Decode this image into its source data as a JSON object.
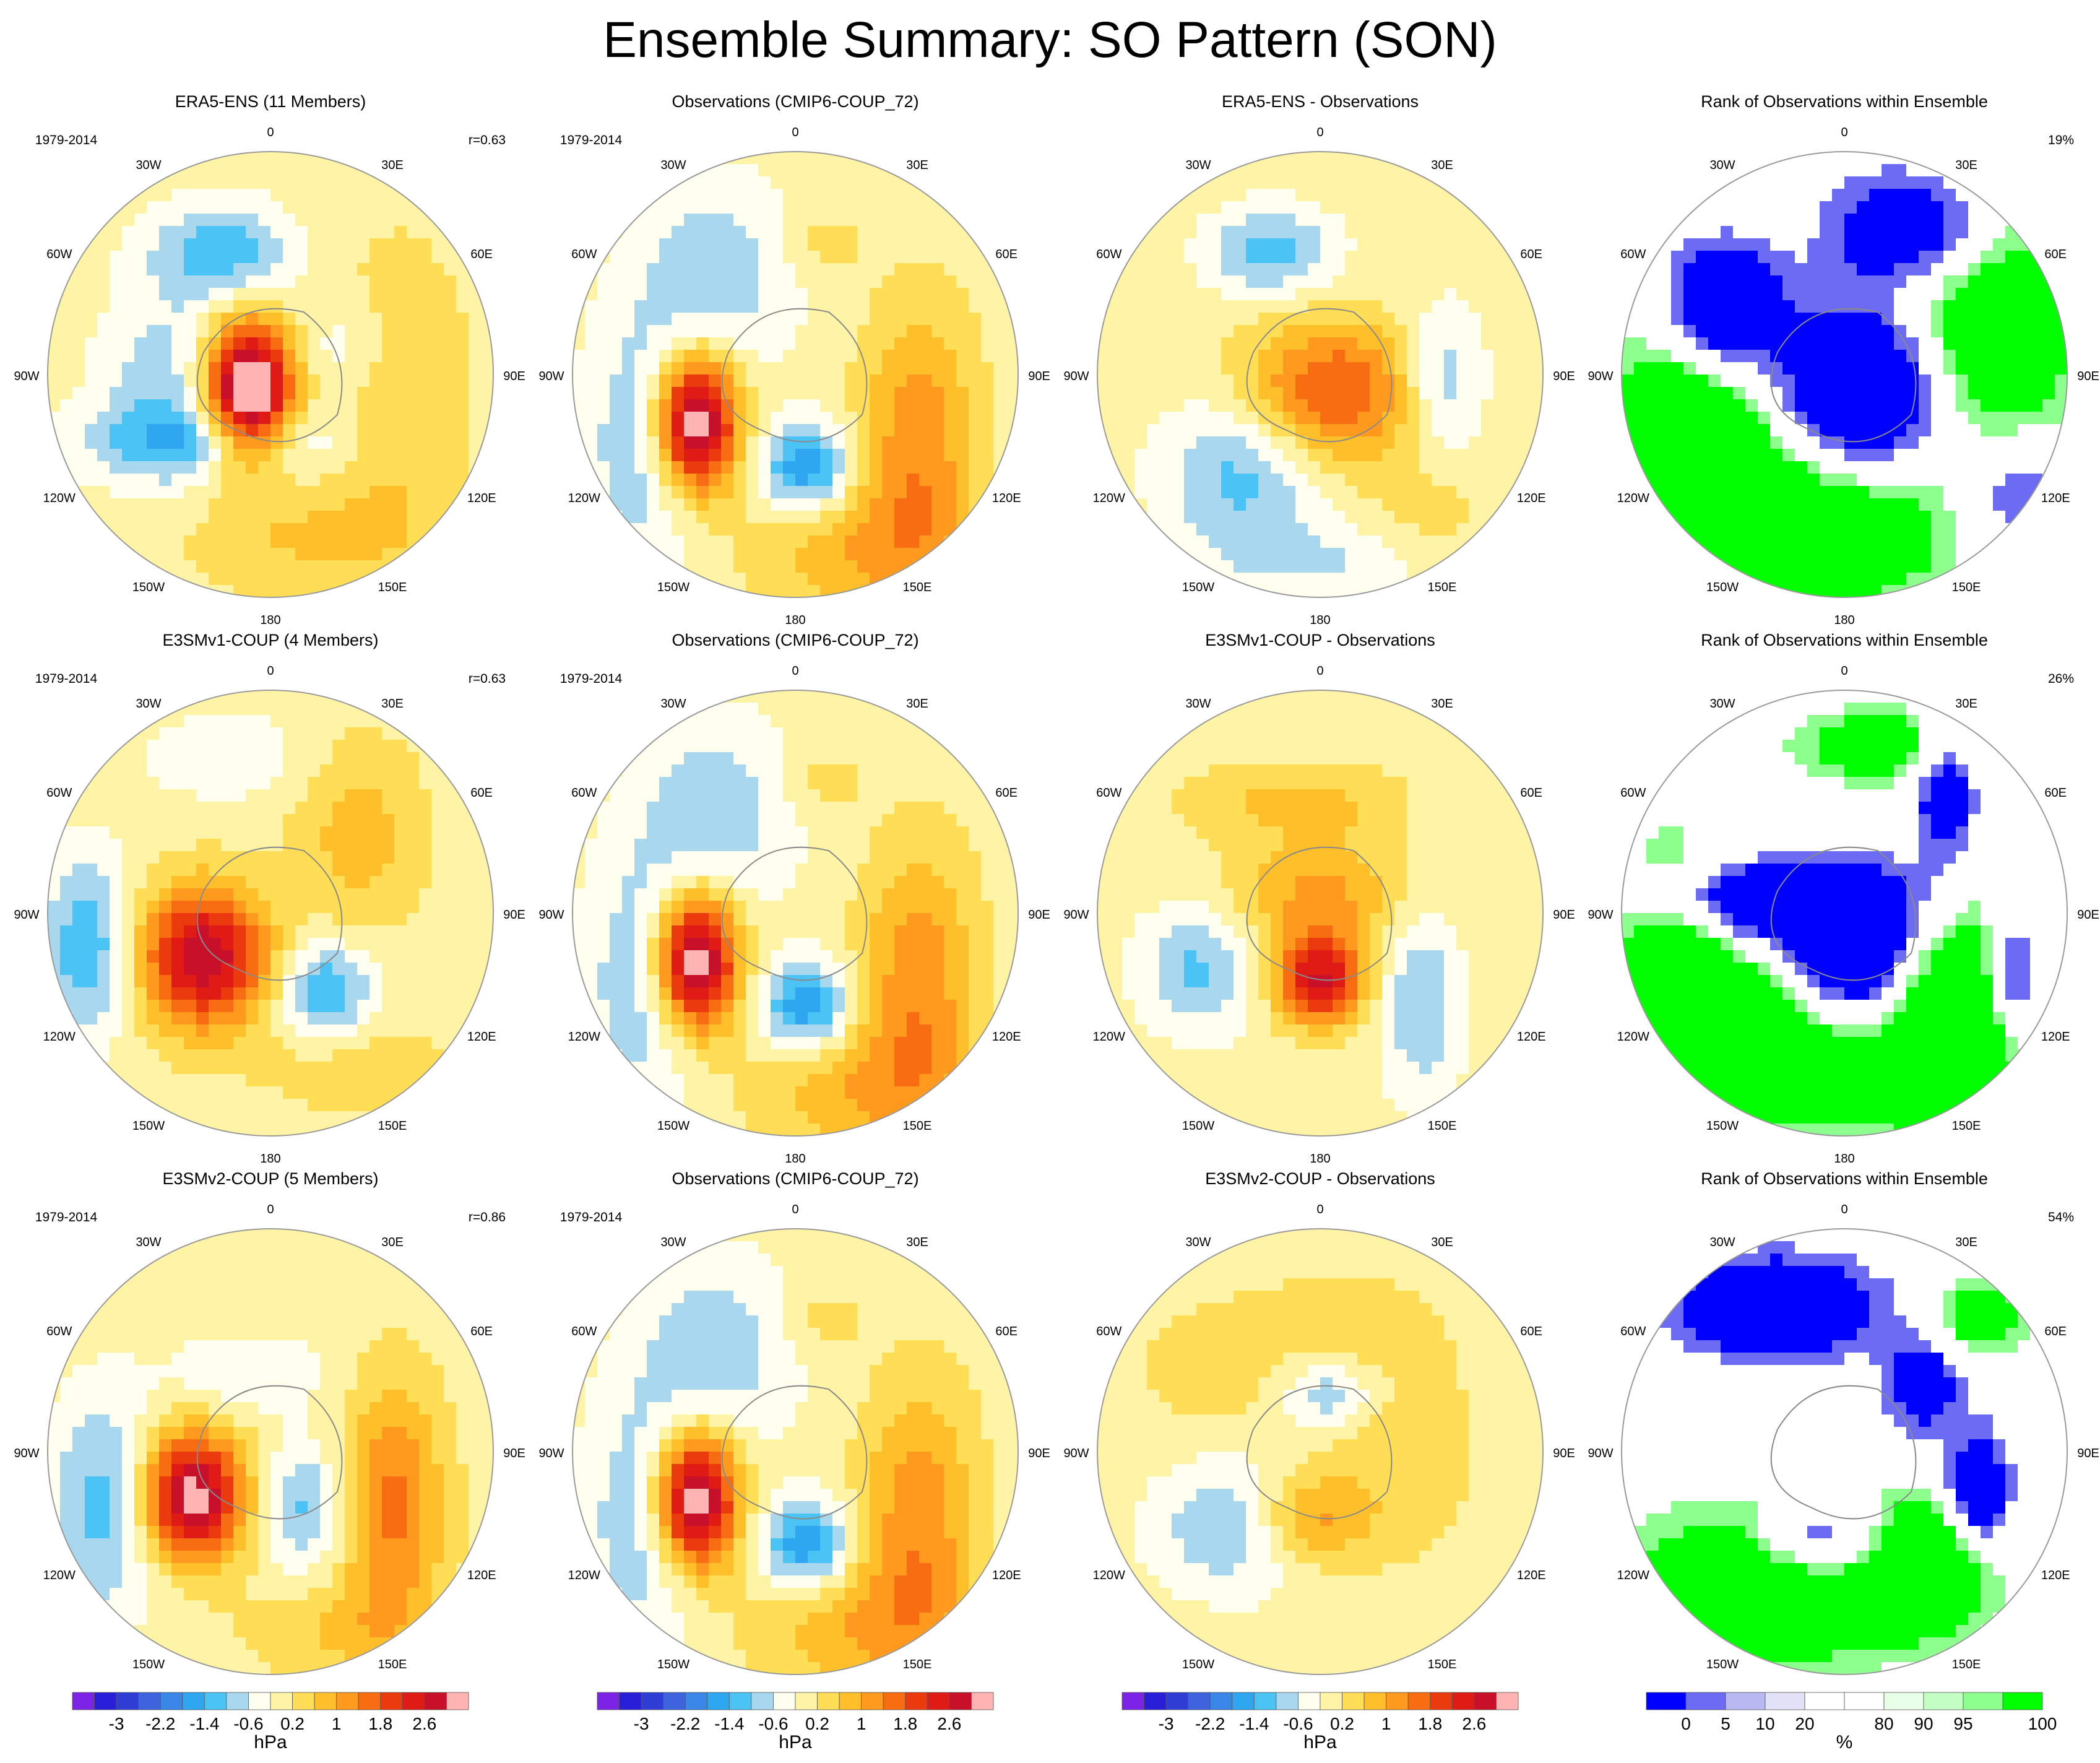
{
  "figure": {
    "title": "Ensemble Summary: SO Pattern (SON)"
  },
  "chart_data": {
    "type": "heatmap",
    "projection": "south polar stereographic",
    "colors": {
      "pressure": [
        "#7b24e6",
        "#2a1fd9",
        "#2f3fd6",
        "#3d63dd",
        "#3a86e6",
        "#2fa7f0",
        "#4cc3f5",
        "#a8d7ee",
        "#fffff0",
        "#fff4a6",
        "#ffdd55",
        "#ffbf2a",
        "#ff9a1e",
        "#f96d12",
        "#ec3a0f",
        "#e01a14",
        "#c8102a",
        "#ffb3b3"
      ],
      "rank": [
        "#0000ff",
        "#6b6bf4",
        "#b8b8f2",
        "#e3e3f7",
        "#ffffff",
        "#ffffff",
        "#e8ffe8",
        "#c2ffc2",
        "#8cff8c",
        "#00ff00"
      ]
    },
    "colorbars": {
      "pressure": {
        "ticks": [
          "-3",
          "-2.2",
          "-1.4",
          "-0.6",
          "0.2",
          "1",
          "1.8",
          "2.6"
        ],
        "tick_levels": [
          -3,
          -2.2,
          -1.4,
          -0.6,
          0.2,
          1,
          1.8,
          2.6
        ],
        "levels": [
          -3.4,
          -3,
          -2.6,
          -2.2,
          -1.8,
          -1.4,
          -1,
          -0.6,
          -0.2,
          0.2,
          0.6,
          1,
          1.4,
          1.8,
          2.2,
          2.6,
          3.0,
          3.4
        ],
        "units": "hPa"
      },
      "rank": {
        "ticks": [
          "0",
          "5",
          "10",
          "20",
          "80",
          "90",
          "95",
          "100"
        ],
        "tick_bins": [
          0,
          1,
          2,
          3,
          5,
          6,
          7,
          9
        ],
        "units": "%"
      }
    },
    "meridian_labels": [
      "0",
      "30E",
      "60E",
      "90E",
      "120E",
      "150E",
      "180",
      "150W",
      "120W",
      "90W",
      "60W",
      "30W"
    ],
    "panels": [
      {
        "title": "ERA5-ENS (11 Members)",
        "period": "1979-2014",
        "corr": "r=0.63",
        "kind": "pressure",
        "blobs": [
          [
            -0.1,
            0.08,
            0.14,
            0.22,
            4.2
          ],
          [
            -0.22,
            -0.55,
            0.22,
            0.15,
            -1.3
          ],
          [
            -0.25,
            0.3,
            0.45,
            0.12,
            -1.1
          ],
          [
            -0.45,
            0.05,
            0.22,
            0.3,
            -0.9
          ],
          [
            0.55,
            0.1,
            0.22,
            0.45,
            0.8
          ],
          [
            0.35,
            -0.1,
            0.18,
            0.18,
            -0.7
          ],
          [
            0.15,
            0.75,
            0.4,
            0.18,
            0.6
          ]
        ]
      },
      {
        "title": "Observations (CMIP6-COUP_72)",
        "period": "1979-2014",
        "corr": "",
        "kind": "pressure",
        "blobs": [
          [
            -0.45,
            0.22,
            0.13,
            0.22,
            4.0
          ],
          [
            0.05,
            0.42,
            0.14,
            0.14,
            -1.8
          ],
          [
            0.55,
            0.3,
            0.18,
            0.42,
            1.3
          ],
          [
            -0.35,
            -0.45,
            0.25,
            0.3,
            -0.9
          ],
          [
            -0.65,
            0.3,
            0.2,
            0.4,
            -1.1
          ],
          [
            0.3,
            0.8,
            0.35,
            0.22,
            0.9
          ],
          [
            0.1,
            -0.6,
            0.15,
            0.12,
            0.4
          ]
        ]
      },
      {
        "title": "ERA5-ENS - Observations",
        "period": "",
        "corr": "",
        "kind": "pressure",
        "blobs": [
          [
            0.05,
            0.08,
            0.28,
            0.22,
            1.9
          ],
          [
            -0.22,
            -0.55,
            0.2,
            0.14,
            -1.2
          ],
          [
            -0.35,
            0.45,
            0.25,
            0.25,
            -1.2
          ],
          [
            0.55,
            0.05,
            0.13,
            0.25,
            -1.0
          ],
          [
            0.05,
            0.85,
            0.35,
            0.12,
            -0.6
          ],
          [
            0.5,
            0.6,
            0.2,
            0.2,
            0.4
          ]
        ]
      },
      {
        "title": "Rank of Observations within Ensemble",
        "period": "",
        "corr": "19%",
        "kind": "rank",
        "blobs": [
          [
            0.1,
            0.1,
            0.28,
            0.28,
            -7
          ],
          [
            -0.55,
            -0.3,
            0.18,
            0.2,
            -6
          ],
          [
            0.3,
            -0.65,
            0.25,
            0.18,
            -5
          ],
          [
            -0.1,
            0.6,
            0.5,
            0.3,
            4
          ],
          [
            0.6,
            -0.2,
            0.3,
            0.4,
            4
          ],
          [
            -0.7,
            0.3,
            0.25,
            0.4,
            4
          ],
          [
            0.75,
            0.55,
            0.2,
            0.2,
            -3
          ]
        ]
      },
      {
        "title": "E3SMv1-COUP (4 Members)",
        "period": "1979-2014",
        "corr": "r=0.63",
        "kind": "pressure",
        "blobs": [
          [
            -0.3,
            0.2,
            0.2,
            0.22,
            3.0
          ],
          [
            0.25,
            0.35,
            0.14,
            0.15,
            -1.5
          ],
          [
            -0.82,
            0.15,
            0.14,
            0.28,
            -1.4
          ],
          [
            0.4,
            -0.35,
            0.2,
            0.3,
            0.8
          ],
          [
            -0.2,
            -0.7,
            0.25,
            0.13,
            -0.6
          ],
          [
            0.4,
            0.7,
            0.3,
            0.15,
            0.5
          ]
        ]
      },
      {
        "title": "Observations (CMIP6-COUP_72)",
        "period": "1979-2014",
        "corr": "",
        "kind": "pressure",
        "blobs": [
          [
            -0.45,
            0.22,
            0.13,
            0.22,
            4.0
          ],
          [
            0.05,
            0.42,
            0.14,
            0.14,
            -1.8
          ],
          [
            0.55,
            0.3,
            0.18,
            0.42,
            1.3
          ],
          [
            -0.35,
            -0.45,
            0.25,
            0.3,
            -0.9
          ],
          [
            -0.65,
            0.3,
            0.2,
            0.4,
            -1.1
          ],
          [
            0.3,
            0.8,
            0.35,
            0.22,
            0.9
          ],
          [
            0.1,
            -0.6,
            0.15,
            0.12,
            0.4
          ]
        ]
      },
      {
        "title": "E3SMv1-COUP - Observations",
        "period": "",
        "corr": "",
        "kind": "pressure",
        "blobs": [
          [
            0.0,
            0.3,
            0.14,
            0.14,
            2.6
          ],
          [
            0.0,
            -0.08,
            0.28,
            0.18,
            1.1
          ],
          [
            -0.55,
            0.25,
            0.18,
            0.2,
            -1.1
          ],
          [
            0.45,
            0.4,
            0.13,
            0.3,
            -1.0
          ],
          [
            -0.1,
            -0.5,
            0.35,
            0.12,
            0.7
          ],
          [
            0.6,
            -0.5,
            0.12,
            0.1,
            -0.3
          ]
        ]
      },
      {
        "title": "Rank of Observations within Ensemble",
        "period": "",
        "corr": "26%",
        "kind": "rank",
        "blobs": [
          [
            -0.3,
            -0.05,
            0.35,
            0.12,
            -6
          ],
          [
            0.05,
            0.2,
            0.2,
            0.25,
            -6
          ],
          [
            0.45,
            -0.55,
            0.1,
            0.25,
            -4
          ],
          [
            0.75,
            0.3,
            0.08,
            0.2,
            -4
          ],
          [
            -0.2,
            0.6,
            0.5,
            0.25,
            4
          ],
          [
            0.5,
            0.5,
            0.2,
            0.4,
            4
          ],
          [
            -0.75,
            0.3,
            0.2,
            0.4,
            4
          ],
          [
            0.2,
            -0.75,
            0.3,
            0.12,
            3
          ]
        ]
      },
      {
        "title": "E3SMv2-COUP (5 Members)",
        "period": "1979-2014",
        "corr": "r=0.86",
        "kind": "pressure",
        "blobs": [
          [
            -0.35,
            0.2,
            0.16,
            0.2,
            3.3
          ],
          [
            0.15,
            0.25,
            0.12,
            0.2,
            -1.1
          ],
          [
            -0.75,
            0.25,
            0.17,
            0.35,
            -1.2
          ],
          [
            0.55,
            0.25,
            0.16,
            0.4,
            1.5
          ],
          [
            -0.1,
            -0.35,
            0.25,
            0.12,
            -0.6
          ],
          [
            0.3,
            0.8,
            0.3,
            0.15,
            0.6
          ]
        ]
      },
      {
        "title": "Observations (CMIP6-COUP_72)",
        "period": "1979-2014",
        "corr": "",
        "kind": "pressure",
        "blobs": [
          [
            -0.45,
            0.22,
            0.13,
            0.22,
            4.0
          ],
          [
            0.05,
            0.42,
            0.14,
            0.14,
            -1.8
          ],
          [
            0.55,
            0.3,
            0.18,
            0.42,
            1.3
          ],
          [
            -0.35,
            -0.45,
            0.25,
            0.3,
            -0.9
          ],
          [
            -0.65,
            0.3,
            0.2,
            0.4,
            -1.1
          ],
          [
            0.3,
            0.8,
            0.35,
            0.22,
            0.9
          ],
          [
            0.1,
            -0.6,
            0.15,
            0.12,
            0.4
          ]
        ]
      },
      {
        "title": "E3SMv2-COUP - Observations",
        "period": "",
        "corr": "",
        "kind": "pressure",
        "blobs": [
          [
            -0.05,
            0.3,
            0.18,
            0.14,
            1.2
          ],
          [
            -0.4,
            0.35,
            0.25,
            0.2,
            -1.0
          ],
          [
            0.05,
            -0.25,
            0.15,
            0.1,
            -1.0
          ],
          [
            0.35,
            0.0,
            0.25,
            0.35,
            0.5
          ],
          [
            -0.5,
            -0.35,
            0.2,
            0.15,
            0.5
          ],
          [
            0.0,
            -0.6,
            0.4,
            0.18,
            0.3
          ]
        ]
      },
      {
        "title": "Rank of Observations within Ensemble",
        "period": "",
        "corr": "54%",
        "kind": "rank",
        "blobs": [
          [
            -0.3,
            -0.65,
            0.3,
            0.15,
            -6
          ],
          [
            0.6,
            0.2,
            0.1,
            0.2,
            -5
          ],
          [
            -0.1,
            0.4,
            0.2,
            0.12,
            -4
          ],
          [
            0.35,
            -0.3,
            0.12,
            0.15,
            -4
          ],
          [
            -0.3,
            0.6,
            0.45,
            0.25,
            4
          ],
          [
            0.4,
            0.5,
            0.2,
            0.2,
            4
          ],
          [
            0.6,
            -0.6,
            0.15,
            0.12,
            3
          ]
        ]
      }
    ]
  }
}
